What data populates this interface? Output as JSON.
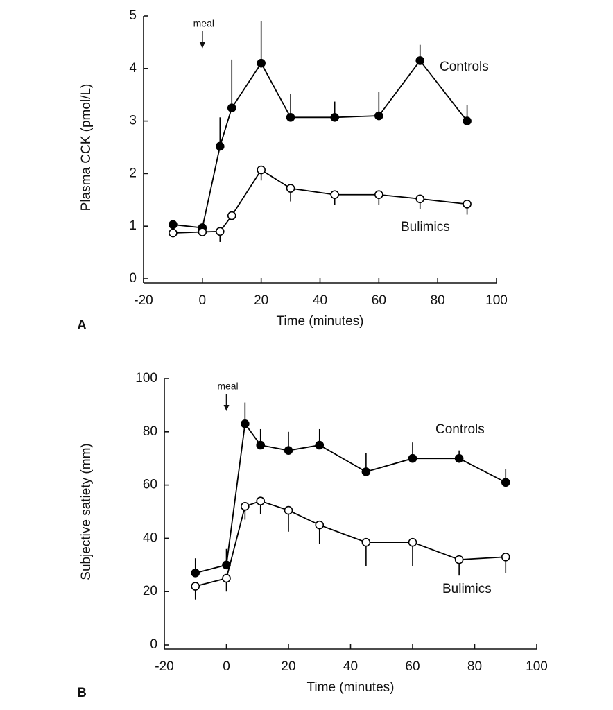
{
  "chart_data": [
    {
      "type": "line",
      "panel_label": "A",
      "xlabel": "Time (minutes)",
      "ylabel": "Plasma CCK (pmol/L)",
      "annotation": {
        "text": "meal",
        "x": 0
      },
      "xlim": [
        -20,
        100
      ],
      "xticks": [
        -20,
        0,
        20,
        40,
        60,
        80,
        100
      ],
      "ylim": [
        0,
        5
      ],
      "yticks": [
        0,
        1,
        2,
        3,
        4,
        5
      ],
      "x": [
        -10,
        0,
        6,
        10,
        20,
        30,
        45,
        60,
        74,
        90
      ],
      "series": [
        {
          "name": "Controls",
          "color": "#000000",
          "marker_fill": "#000000",
          "error_direction": "up",
          "values": [
            1.03,
            0.97,
            2.52,
            3.25,
            4.1,
            3.07,
            3.07,
            3.1,
            4.15,
            3.0
          ],
          "errors": [
            null,
            null,
            0.55,
            0.92,
            0.8,
            0.45,
            0.3,
            0.45,
            0.3,
            0.3
          ]
        },
        {
          "name": "Bulimics",
          "color": "#000000",
          "marker_fill": "#ffffff",
          "error_direction": "down",
          "values": [
            0.87,
            0.89,
            0.9,
            1.2,
            2.07,
            1.72,
            1.6,
            1.6,
            1.52,
            1.42
          ],
          "errors": [
            null,
            null,
            0.2,
            null,
            0.2,
            0.25,
            0.2,
            0.2,
            0.2,
            0.2
          ]
        }
      ]
    },
    {
      "type": "line",
      "panel_label": "B",
      "xlabel": "Time (minutes)",
      "ylabel": "Subjective satiety (mm)",
      "annotation": {
        "text": "meal",
        "x": 0
      },
      "xlim": [
        -20,
        100
      ],
      "xticks": [
        -20,
        0,
        20,
        40,
        60,
        80,
        100
      ],
      "ylim": [
        0,
        100
      ],
      "yticks": [
        0,
        20,
        40,
        60,
        80,
        100
      ],
      "x": [
        -10,
        0,
        6,
        11,
        20,
        30,
        45,
        60,
        75,
        90
      ],
      "series": [
        {
          "name": "Controls",
          "color": "#000000",
          "marker_fill": "#000000",
          "error_direction": "up",
          "values": [
            27,
            30,
            83,
            75,
            73,
            75,
            65,
            70,
            70,
            61
          ],
          "errors": [
            5.5,
            6,
            8,
            6,
            7,
            6,
            7,
            6,
            3,
            5
          ]
        },
        {
          "name": "Bulimics",
          "color": "#000000",
          "marker_fill": "#ffffff",
          "error_direction": "down",
          "values": [
            22,
            25,
            52,
            54,
            50.5,
            45,
            38.5,
            38.5,
            32,
            33
          ],
          "errors": [
            5,
            5,
            5,
            5,
            8,
            7,
            9,
            9,
            6,
            6
          ]
        }
      ]
    }
  ]
}
